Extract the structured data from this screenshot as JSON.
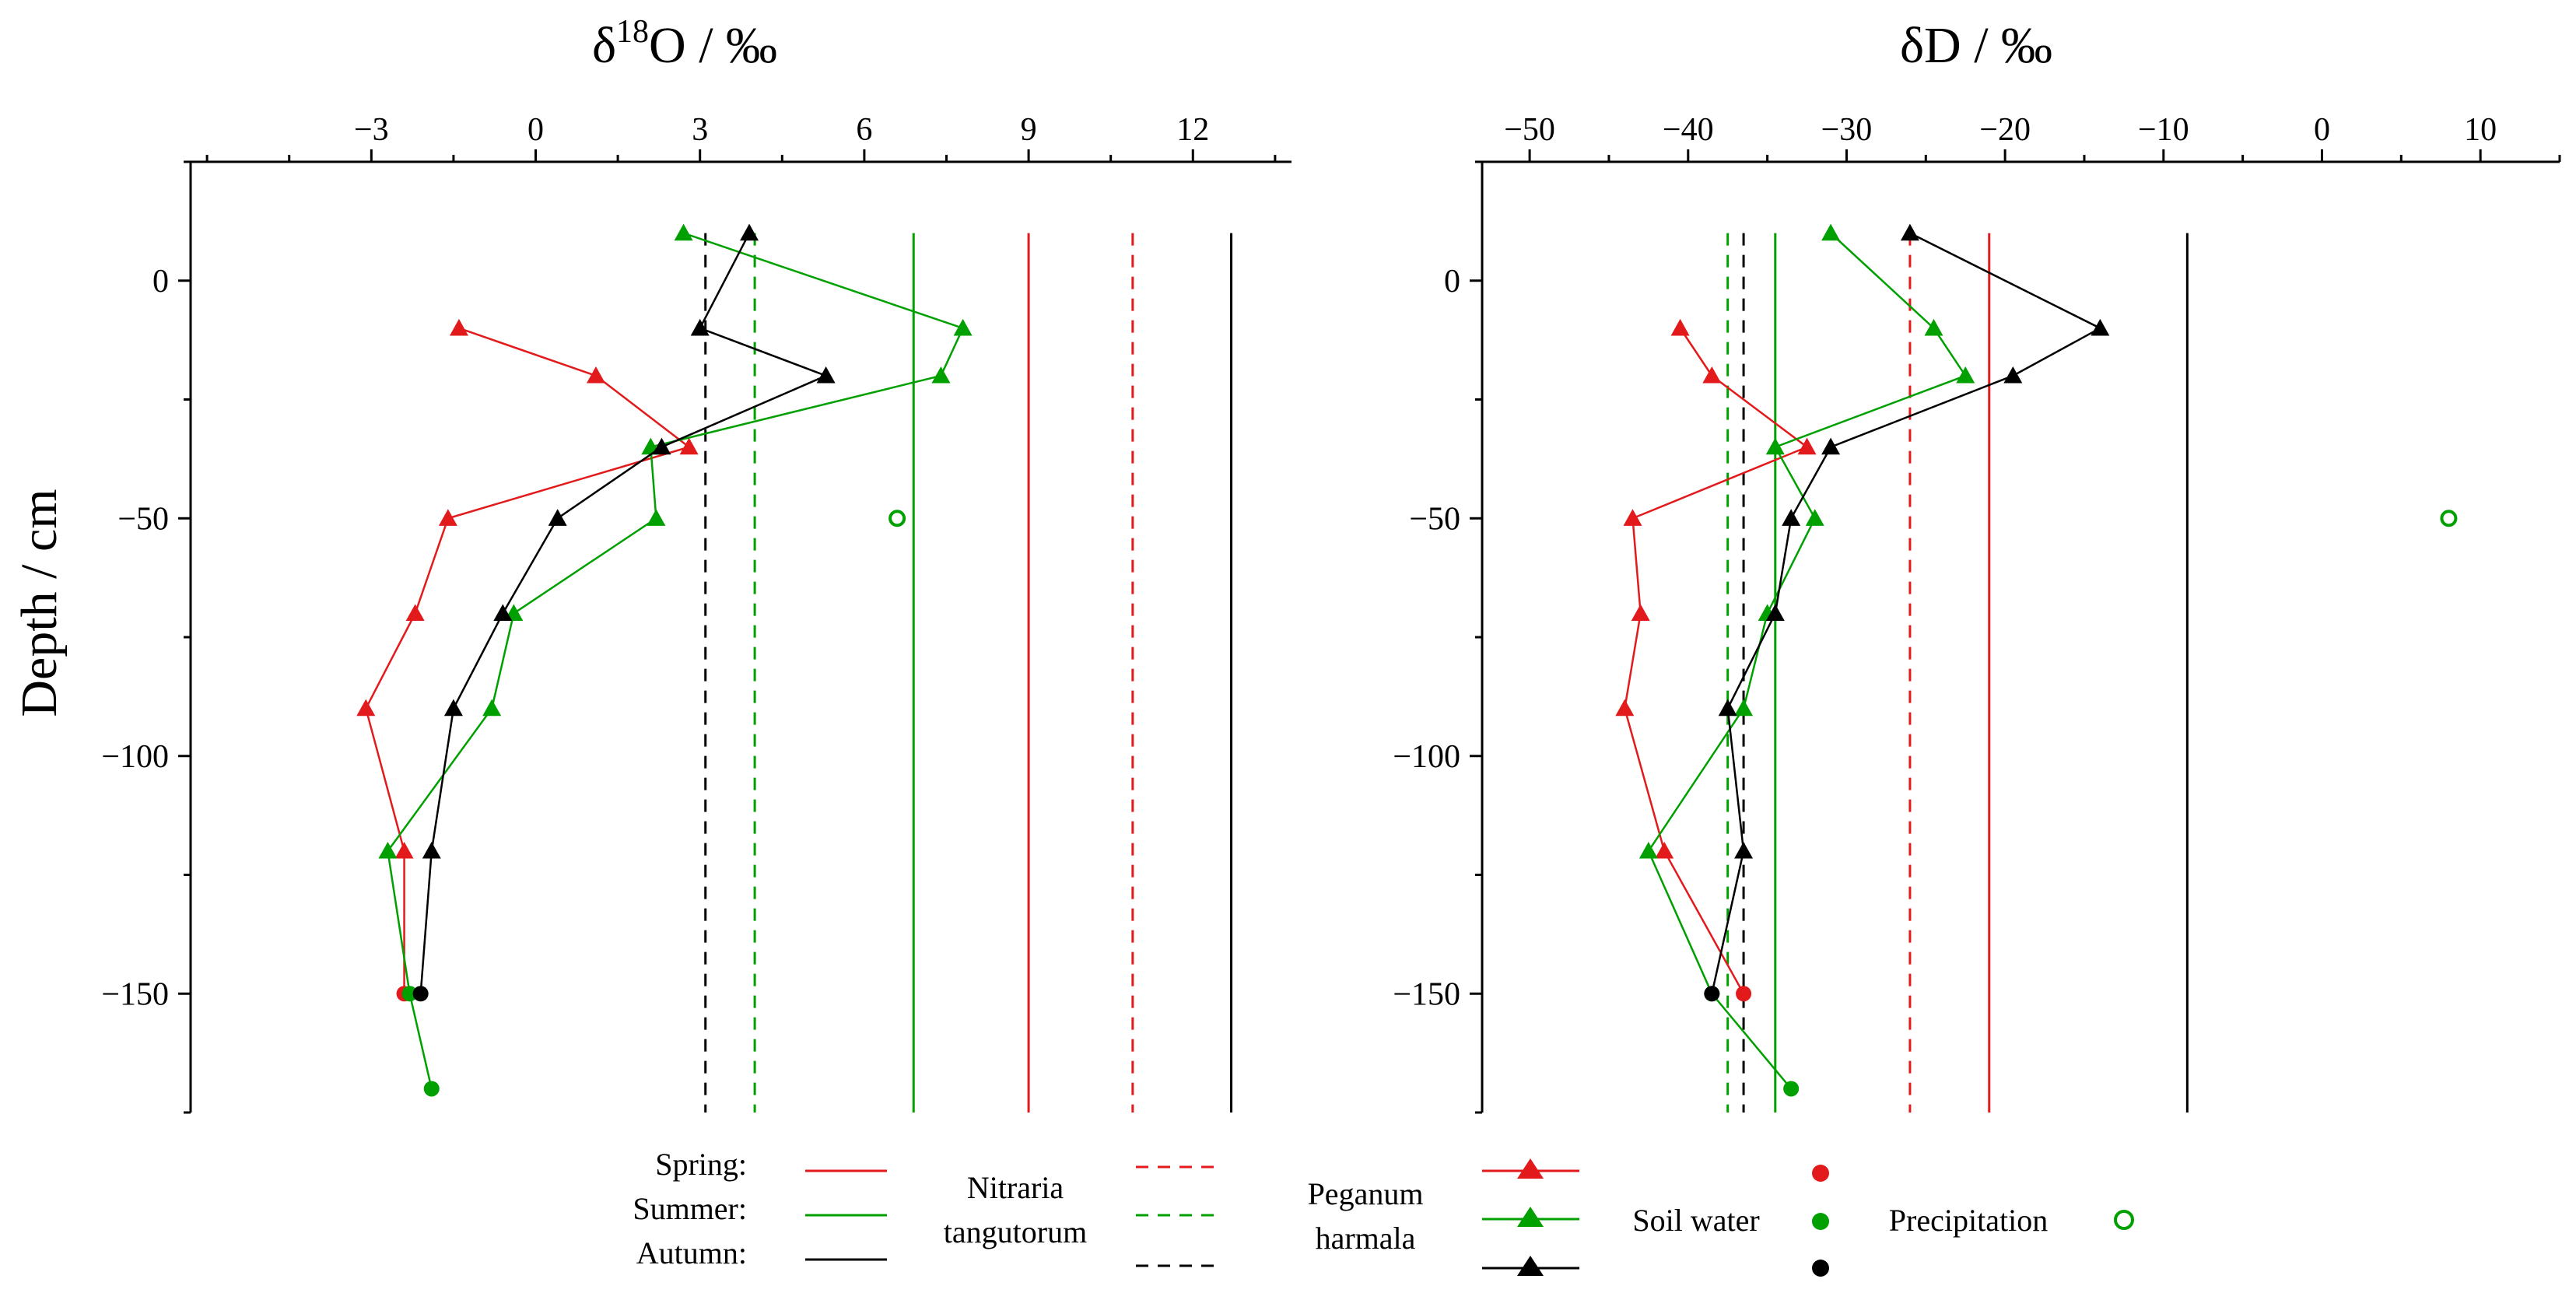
{
  "chart_data": [
    {
      "type": "line",
      "panel": "left",
      "title_prefix": "δ",
      "title_sup": "18",
      "title_suffix": "O / ‰",
      "xlabel": "δ18O / ‰",
      "ylabel": "Depth / cm",
      "xlim": [
        -6.3,
        13.8
      ],
      "ylim": [
        -175,
        25
      ],
      "xticks": [
        -3,
        0,
        3,
        6,
        9,
        12
      ],
      "xtick_labels": [
        "−3",
        "0",
        "3",
        "6",
        "9",
        "12"
      ],
      "yticks": [
        0,
        -50,
        -100,
        -150
      ],
      "ytick_labels": [
        "0",
        "−50",
        "−100",
        "−150"
      ],
      "vertical_lines": [
        {
          "name": "Nitraria tangutorum",
          "season": "Spring",
          "x": 9.0,
          "style": "solid",
          "color": "#e31a1c"
        },
        {
          "name": "Nitraria tangutorum",
          "season": "Summer",
          "x": 6.9,
          "style": "solid",
          "color": "#00a000"
        },
        {
          "name": "Nitraria tangutorum",
          "season": "Autumn",
          "x": 12.7,
          "style": "solid",
          "color": "#000000"
        },
        {
          "name": "Peganum harmala",
          "season": "Spring",
          "x": 10.9,
          "style": "dashed",
          "color": "#e31a1c"
        },
        {
          "name": "Peganum harmala",
          "season": "Summer",
          "x": 4.0,
          "style": "dashed",
          "color": "#00a000"
        },
        {
          "name": "Peganum harmala",
          "season": "Autumn",
          "x": 3.1,
          "style": "dashed",
          "color": "#000000"
        }
      ],
      "series": [
        {
          "name": "Spring",
          "color": "#e31a1c",
          "depth": [
            -10,
            -20,
            -35,
            -50,
            -70,
            -90,
            -120,
            -150
          ],
          "values": [
            -1.4,
            1.1,
            2.8,
            -1.6,
            -2.2,
            -3.1,
            -2.4,
            -2.4
          ]
        },
        {
          "name": "Summer",
          "color": "#00a000",
          "depth": [
            10,
            -10,
            -20,
            -35,
            -50,
            -70,
            -90,
            -120,
            -150,
            -170
          ],
          "values": [
            2.7,
            7.8,
            7.4,
            2.1,
            2.2,
            -0.4,
            -0.8,
            -2.7,
            -2.3,
            -1.9
          ]
        },
        {
          "name": "Autumn",
          "color": "#000000",
          "depth": [
            10,
            -10,
            -20,
            -35,
            -50,
            -70,
            -90,
            -120,
            -150
          ],
          "values": [
            3.9,
            3.0,
            5.3,
            2.3,
            0.4,
            -0.6,
            -1.5,
            -1.9,
            -2.1
          ]
        }
      ],
      "precipitation": [
        {
          "season": "Summer",
          "x": 6.6,
          "depth": -50,
          "color": "#00a000"
        }
      ]
    },
    {
      "type": "line",
      "panel": "right",
      "title_prefix": "δD / ‰",
      "title_sup": "",
      "title_suffix": "",
      "xlabel": "δD / ‰",
      "ylabel": "",
      "xlim": [
        -53,
        15
      ],
      "ylim": [
        -175,
        25
      ],
      "xticks": [
        -50,
        -40,
        -30,
        -20,
        -10,
        0,
        10
      ],
      "xtick_labels": [
        "−50",
        "−40",
        "−30",
        "−20",
        "−10",
        "0",
        "10"
      ],
      "yticks": [
        0,
        -50,
        -100,
        -150
      ],
      "ytick_labels": [
        "0",
        "−50",
        "−100",
        "−150"
      ],
      "vertical_lines": [
        {
          "name": "Nitraria tangutorum",
          "season": "Spring",
          "x": -21.0,
          "style": "solid",
          "color": "#e31a1c"
        },
        {
          "name": "Nitraria tangutorum",
          "season": "Summer",
          "x": -34.5,
          "style": "solid",
          "color": "#00a000"
        },
        {
          "name": "Nitraria tangutorum",
          "season": "Autumn",
          "x": -8.5,
          "style": "solid",
          "color": "#000000"
        },
        {
          "name": "Peganum harmala",
          "season": "Spring",
          "x": -26.0,
          "style": "dashed",
          "color": "#e31a1c"
        },
        {
          "name": "Peganum harmala",
          "season": "Summer",
          "x": -37.5,
          "style": "dashed",
          "color": "#00a000"
        },
        {
          "name": "Peganum harmala",
          "season": "Autumn",
          "x": -36.5,
          "style": "dashed",
          "color": "#000000"
        }
      ],
      "series": [
        {
          "name": "Spring",
          "color": "#e31a1c",
          "depth": [
            -10,
            -20,
            -35,
            -50,
            -70,
            -90,
            -120,
            -150
          ],
          "values": [
            -40.5,
            -38.5,
            -32.5,
            -43.5,
            -43.0,
            -44.0,
            -41.5,
            -36.5
          ]
        },
        {
          "name": "Summer",
          "color": "#00a000",
          "depth": [
            10,
            -10,
            -20,
            -35,
            -50,
            -70,
            -90,
            -120,
            -150,
            -170
          ],
          "values": [
            -31.0,
            -24.5,
            -22.5,
            -34.5,
            -32.0,
            -35.0,
            -36.5,
            -42.5,
            -38.5,
            -33.5
          ]
        },
        {
          "name": "Autumn",
          "color": "#000000",
          "depth": [
            10,
            -10,
            -20,
            -35,
            -50,
            -70,
            -90,
            -120,
            -150
          ],
          "values": [
            -26.0,
            -14.0,
            -19.5,
            -31.0,
            -33.5,
            -34.5,
            -37.5,
            -36.5,
            -38.5
          ]
        }
      ],
      "precipitation": [
        {
          "season": "Summer",
          "x": 8.0,
          "depth": -50,
          "color": "#00a000"
        }
      ]
    }
  ],
  "legend": {
    "seasons": [
      "Spring:",
      "Summer:",
      "Autumn:"
    ],
    "nitraria_line1": "Nitraria",
    "nitraria_line2": "tangutorum",
    "peganum_line1": "Peganum",
    "peganum_line2": "harmala",
    "soil_water": "Soil water",
    "precipitation": "Precipitation",
    "colors": [
      "#e31a1c",
      "#00a000",
      "#000000"
    ]
  }
}
